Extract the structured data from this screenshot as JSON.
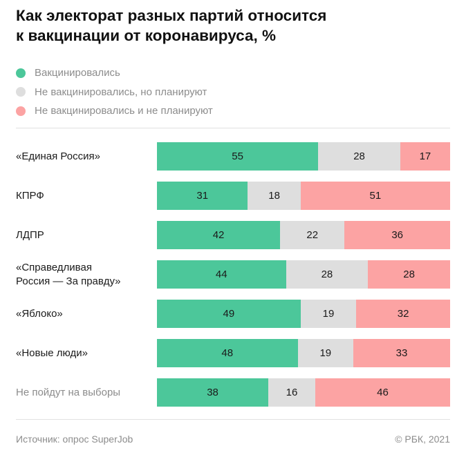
{
  "title_lines": [
    "Как электорат разных партий относится",
    "к вакцинации от коронавируса, %"
  ],
  "colors": {
    "vaccinated": "#4cc79a",
    "planning": "#dedede",
    "not_planning": "#fca3a3"
  },
  "chart_data": {
    "type": "bar",
    "orientation": "horizontal",
    "stacked": true,
    "title": "Как электорат разных партий относится к вакцинации от коронавируса, %",
    "categories": [
      "«Единая Россия»",
      "КПРФ",
      "ЛДПР",
      "«Справедливая\nРоссия — За правду»",
      "«Яблоко»",
      "«Новые люди»",
      "Не пойдут на выборы"
    ],
    "muted_categories": [
      6
    ],
    "series": [
      {
        "name": "Вакцинировались",
        "color": "#4cc79a",
        "values": [
          55,
          31,
          42,
          44,
          49,
          48,
          38
        ]
      },
      {
        "name": "Не вакцинировались, но планируют",
        "color": "#dedede",
        "values": [
          28,
          18,
          22,
          28,
          19,
          19,
          16
        ]
      },
      {
        "name": "Не вакцинировались и не планируют",
        "color": "#fca3a3",
        "values": [
          17,
          51,
          36,
          28,
          32,
          33,
          46
        ]
      }
    ],
    "xlim": [
      0,
      100
    ],
    "legend_position": "top-left",
    "grid": false
  },
  "footer": {
    "source": "Источник:  опрос SuperJob",
    "copyright": "© РБК, 2021"
  }
}
